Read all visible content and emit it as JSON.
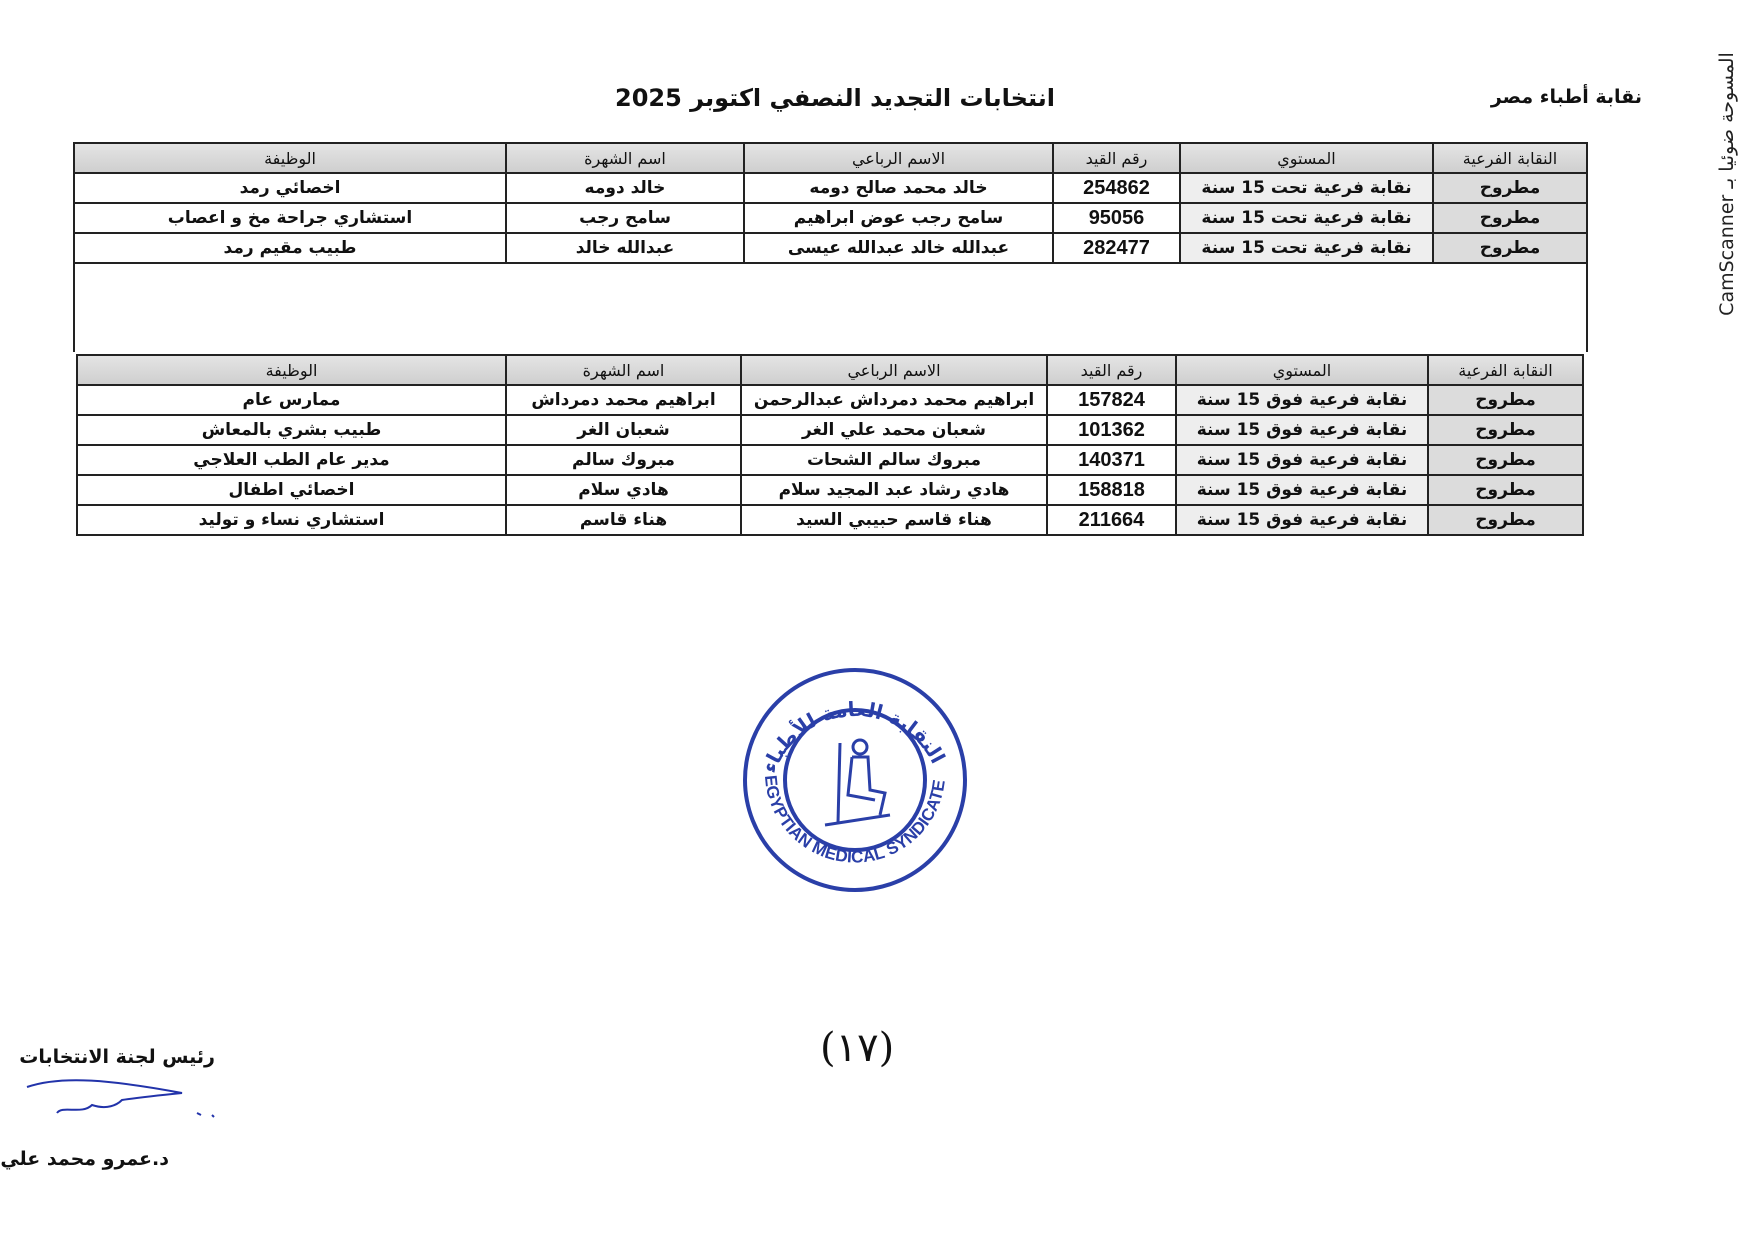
{
  "header": {
    "org": "نقابة أطباء مصر",
    "title": "انتخابات التجديد النصفي اكتوبر 2025"
  },
  "watermark": "المسوحة ضوئيا بـ CamScanner",
  "columns": [
    "النقابة الفرعية",
    "المستوي",
    "رقم القيد",
    "الاسم الرباعي",
    "اسم الشهرة",
    "الوظيفة"
  ],
  "table1": [
    {
      "branch": "مطروح",
      "level": "نقابة فرعية تحت 15 سنة",
      "reg": "254862",
      "full_name": "خالد محمد صالح دومه",
      "known_as": "خالد دومه",
      "job": "اخصائي رمد"
    },
    {
      "branch": "مطروح",
      "level": "نقابة فرعية تحت 15 سنة",
      "reg": "95056",
      "full_name": "سامح رجب عوض ابراهيم",
      "known_as": "سامح رجب",
      "job": "استشاري جراحة مخ و اعصاب"
    },
    {
      "branch": "مطروح",
      "level": "نقابة فرعية تحت 15 سنة",
      "reg": "282477",
      "full_name": "عبدالله خالد عبدالله عيسى",
      "known_as": "عبدالله خالد",
      "job": "طبيب مقيم رمد"
    }
  ],
  "table2": [
    {
      "branch": "مطروح",
      "level": "نقابة فرعية فوق 15 سنة",
      "reg": "157824",
      "full_name": "ابراهيم محمد دمرداش عبدالرحمن",
      "known_as": "ابراهيم محمد دمرداش",
      "job": "ممارس عام"
    },
    {
      "branch": "مطروح",
      "level": "نقابة فرعية فوق 15 سنة",
      "reg": "101362",
      "full_name": "شعبان محمد علي الغر",
      "known_as": "شعبان الغر",
      "job": "طبيب بشري بالمعاش"
    },
    {
      "branch": "مطروح",
      "level": "نقابة فرعية فوق 15 سنة",
      "reg": "140371",
      "full_name": "مبروك سالم الشحات",
      "known_as": "مبروك سالم",
      "job": "مدير عام الطب العلاجي"
    },
    {
      "branch": "مطروح",
      "level": "نقابة فرعية فوق 15 سنة",
      "reg": "158818",
      "full_name": "هادي رشاد عبد المجيد سلام",
      "known_as": "هادي سلام",
      "job": "اخصائي اطفال"
    },
    {
      "branch": "مطروح",
      "level": "نقابة فرعية فوق 15 سنة",
      "reg": "211664",
      "full_name": "هناء قاسم حبيبي السيد",
      "known_as": "هناء قاسم",
      "job": "استشاري نساء و توليد"
    }
  ],
  "stamp": {
    "arabic": "النقابة العامة للأطباء",
    "english": "EGYPTIAN MEDICAL SYNDICATE",
    "color": "#2a3fa8"
  },
  "page_number": "(١٧)",
  "footer": {
    "chair_title": "رئيس لجنة الانتخابات",
    "signature": "د. شادي حسن",
    "chair_name": "د.عمرو محمد علي"
  }
}
